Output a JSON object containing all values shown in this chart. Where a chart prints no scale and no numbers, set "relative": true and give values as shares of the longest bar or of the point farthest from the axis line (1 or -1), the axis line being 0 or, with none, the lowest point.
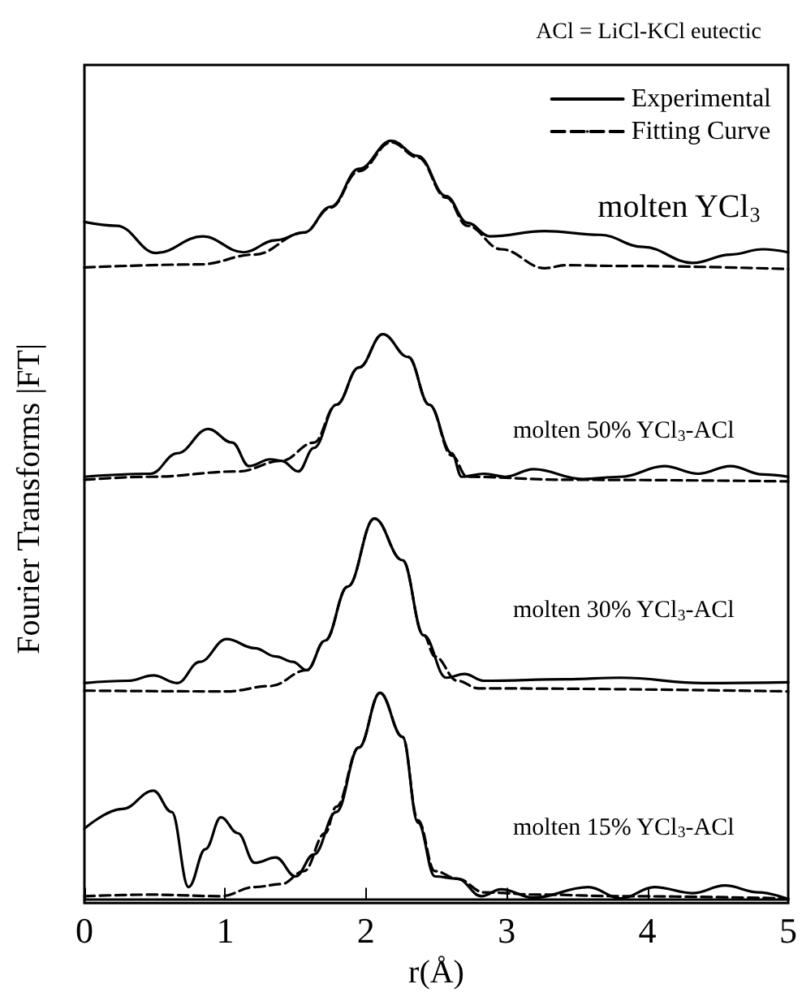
{
  "chart_data": {
    "type": "line",
    "title": "ACl = LiCl-KCl eutectic",
    "xlabel": "r(Å)",
    "ylabel": "Fourier Transforms |FT|",
    "relative": true,
    "xlim": [
      0,
      5
    ],
    "xticks": [
      0,
      1,
      2,
      3,
      4,
      5
    ],
    "grid": false,
    "legend": "top right",
    "marker": "none",
    "annotations": [
      "molten YCl$_{3}$",
      "molten 50% YCl$_{3}$-ACl",
      "molten 30% YCl$_{3}$-ACl",
      "molten 15% YCl$_{3}$-ACl"
    ],
    "series": [
      {
        "name": "Experimental",
        "color": "#000000",
        "line_style": "solid",
        "x": [
          0,
          0.23,
          0.51,
          0.84,
          1.13,
          1.36,
          1.56,
          1.75,
          1.95,
          2.18,
          2.37,
          2.57,
          2.72,
          2.88,
          3.27,
          3.66,
          3.97,
          4.32,
          4.59,
          4.82,
          5
        ],
        "values": [
          0.893,
          0.888,
          0.852,
          0.874,
          0.853,
          0.869,
          0.879,
          0.913,
          0.963,
          1.0,
          0.98,
          0.927,
          0.892,
          0.874,
          0.881,
          0.876,
          0.86,
          0.839,
          0.85,
          0.857,
          0.853
        ]
      },
      {
        "name": "Fitting Curve",
        "color": "#000000",
        "line_style": "dashed",
        "x": [
          0,
          0.82,
          1.21,
          1.56,
          1.75,
          1.95,
          2.18,
          2.37,
          2.57,
          2.72,
          2.96,
          3.27,
          3.42,
          3.81,
          5
        ],
        "values": [
          0.833,
          0.837,
          0.85,
          0.879,
          0.912,
          0.96,
          0.998,
          0.978,
          0.925,
          0.888,
          0.857,
          0.832,
          0.836,
          0.835,
          0.831
        ]
      },
      {
        "color": "#000000",
        "line_style": "solid",
        "x": [
          0,
          0.47,
          0.66,
          0.88,
          1.05,
          1.17,
          1.32,
          1.4,
          1.52,
          1.63,
          1.79,
          1.95,
          2.12,
          2.3,
          2.45,
          2.61,
          2.68,
          2.84,
          2.99,
          3.19,
          3.54,
          3.81,
          4.12,
          4.36,
          4.59,
          4.82,
          5
        ],
        "values": [
          0.557,
          0.561,
          0.588,
          0.62,
          0.602,
          0.571,
          0.58,
          0.578,
          0.564,
          0.595,
          0.652,
          0.701,
          0.745,
          0.715,
          0.652,
          0.588,
          0.557,
          0.561,
          0.557,
          0.567,
          0.554,
          0.557,
          0.571,
          0.561,
          0.571,
          0.56,
          0.557
        ]
      },
      {
        "color": "#000000",
        "line_style": "dashed",
        "x": [
          0,
          0.47,
          1.09,
          1.4,
          1.63,
          1.79,
          1.95,
          2.12,
          2.3,
          2.45,
          2.61,
          2.72,
          3.42,
          5
        ],
        "values": [
          0.553,
          0.557,
          0.564,
          0.578,
          0.602,
          0.652,
          0.701,
          0.745,
          0.715,
          0.652,
          0.585,
          0.557,
          0.553,
          0.551
        ]
      },
      {
        "color": "#000000",
        "line_style": "solid",
        "x": [
          0,
          0.31,
          0.49,
          0.66,
          0.82,
          1.01,
          1.21,
          1.36,
          1.48,
          1.58,
          1.71,
          1.87,
          2.06,
          2.26,
          2.41,
          2.57,
          2.7,
          2.84,
          3.42,
          3.81,
          4.4,
          5
        ],
        "values": [
          0.285,
          0.288,
          0.295,
          0.285,
          0.313,
          0.343,
          0.331,
          0.32,
          0.313,
          0.302,
          0.341,
          0.412,
          0.502,
          0.447,
          0.348,
          0.292,
          0.297,
          0.288,
          0.29,
          0.292,
          0.285,
          0.286
        ]
      },
      {
        "color": "#000000",
        "line_style": "dashed",
        "x": [
          0,
          1.01,
          1.32,
          1.58,
          1.71,
          1.87,
          2.06,
          2.26,
          2.41,
          2.49,
          2.65,
          2.8,
          5
        ],
        "values": [
          0.275,
          0.274,
          0.281,
          0.302,
          0.341,
          0.412,
          0.502,
          0.447,
          0.348,
          0.32,
          0.288,
          0.278,
          0.274
        ]
      },
      {
        "color": "#000000",
        "line_style": "solid",
        "x": [
          0,
          0.27,
          0.49,
          0.62,
          0.74,
          0.86,
          0.97,
          1.09,
          1.21,
          1.36,
          1.5,
          1.63,
          1.79,
          1.95,
          2.1,
          2.26,
          2.37,
          2.49,
          2.65,
          2.82,
          2.96,
          3.19,
          3.58,
          3.81,
          4.05,
          4.32,
          4.55,
          4.79,
          5
        ],
        "values": [
          0.093,
          0.119,
          0.143,
          0.115,
          0.016,
          0.066,
          0.108,
          0.087,
          0.048,
          0.055,
          0.03,
          0.059,
          0.115,
          0.2,
          0.272,
          0.214,
          0.101,
          0.03,
          0.027,
          0.004,
          0.013,
          0.002,
          0.016,
          0.001,
          0.016,
          0.008,
          0.018,
          0.009,
          0
        ]
      },
      {
        "color": "#000000",
        "line_style": "dashed",
        "x": [
          0,
          0.47,
          0.97,
          1.21,
          1.4,
          1.56,
          1.71,
          1.79,
          1.95,
          2.1,
          2.26,
          2.37,
          2.49,
          2.65,
          2.84,
          3.23,
          3.81,
          5
        ],
        "values": [
          0.004,
          0.006,
          0.004,
          0.016,
          0.02,
          0.037,
          0.087,
          0.122,
          0.2,
          0.272,
          0.214,
          0.104,
          0.037,
          0.027,
          0.009,
          0.006,
          0.004,
          0.001
        ]
      }
    ]
  }
}
